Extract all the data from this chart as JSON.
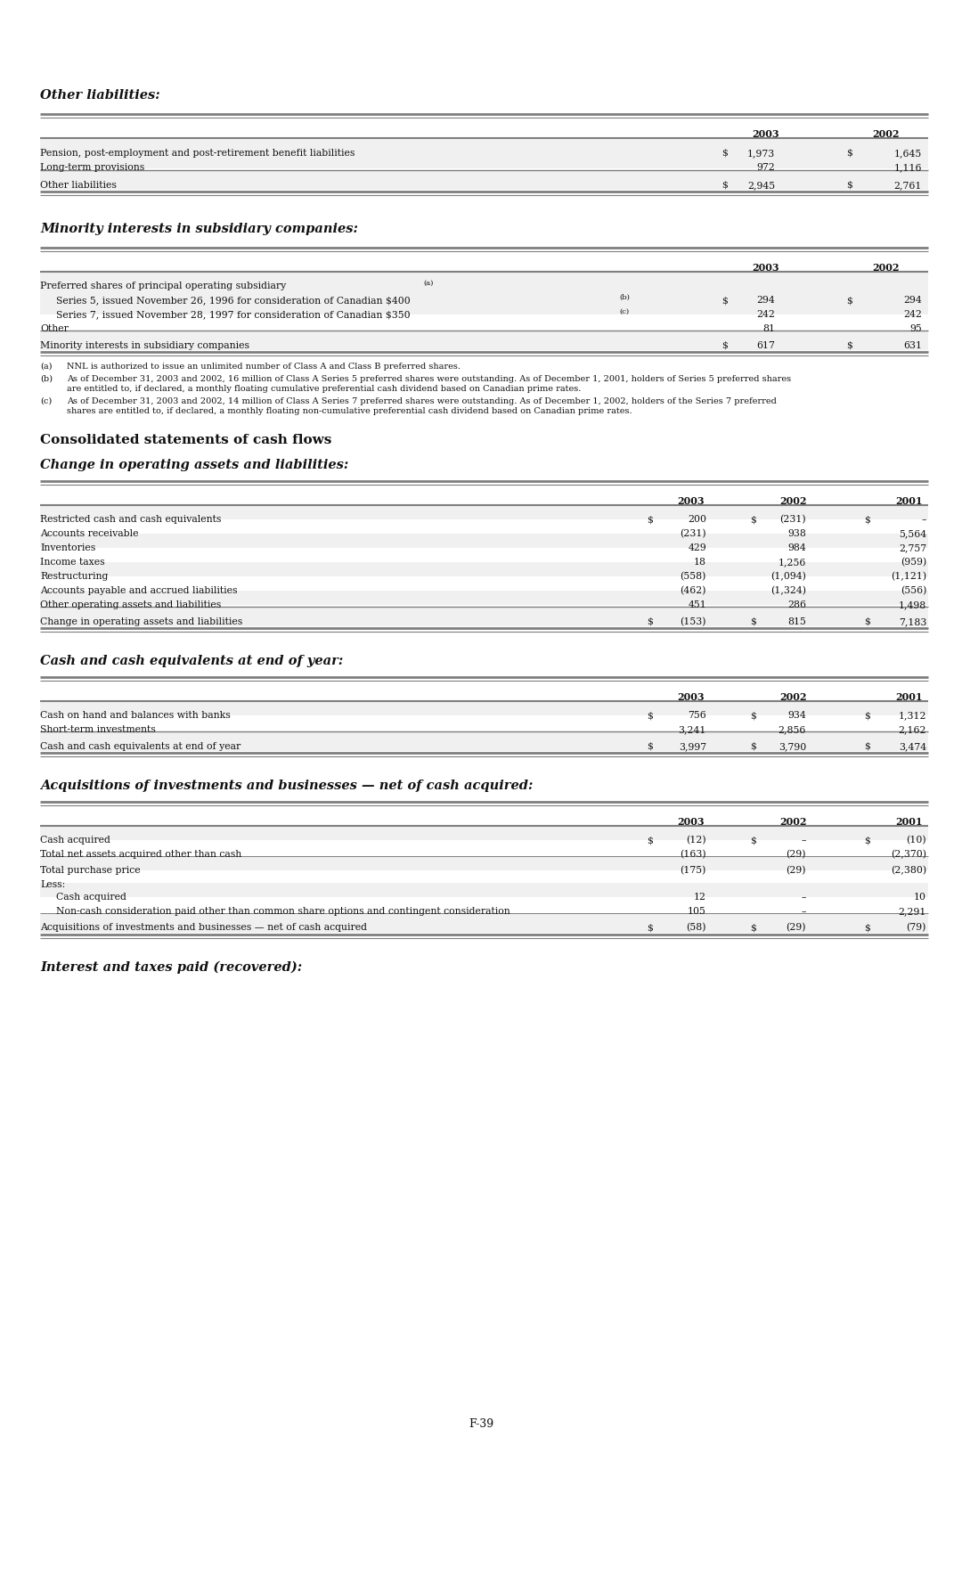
{
  "bg_color": "#ffffff",
  "section1_title": "Other liabilities:",
  "section2_title": "Minority interests in subsidiary companies:",
  "section3_title": "Consolidated statements of cash flows",
  "section4_title": "Change in operating assets and liabilities:",
  "section5_title": "Cash and cash equivalents at end of year:",
  "section6_title": "Acquisitions of investments and businesses — net of cash acquired:",
  "section7_title": "Interest and taxes paid (recovered):",
  "page_number": "F-39"
}
